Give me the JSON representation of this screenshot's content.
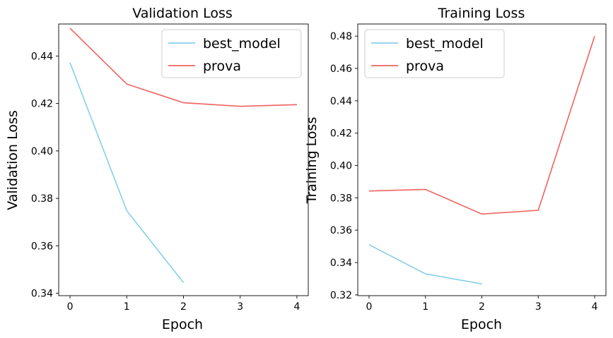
{
  "chart_data": [
    {
      "type": "line",
      "title": "Validation Loss",
      "xlabel": "Epoch",
      "ylabel": "Validation Loss",
      "xlim": [
        -0.2,
        4.2
      ],
      "ylim": [
        0.339,
        0.4535
      ],
      "xticks": [
        0,
        1,
        2,
        3,
        4
      ],
      "yticks": [
        0.34,
        0.36,
        0.38,
        0.4,
        0.42,
        0.44
      ],
      "legend": "top-right",
      "series": [
        {
          "name": "best_model",
          "color": "#87CEEB",
          "x": [
            0,
            1,
            2
          ],
          "y": [
            0.4372,
            0.3748,
            0.3445
          ]
        },
        {
          "name": "prova",
          "color": "#F0625F",
          "x": [
            0,
            1,
            2,
            3,
            4
          ],
          "y": [
            0.4517,
            0.4282,
            0.4203,
            0.4188,
            0.4195
          ]
        }
      ]
    },
    {
      "type": "line",
      "title": "Training Loss",
      "xlabel": "Epoch",
      "ylabel": "Training Loss",
      "xlim": [
        -0.2,
        4.2
      ],
      "ylim": [
        0.3195,
        0.4875
      ],
      "xticks": [
        0,
        1,
        2,
        3,
        4
      ],
      "yticks": [
        0.32,
        0.34,
        0.36,
        0.38,
        0.4,
        0.42,
        0.44,
        0.46,
        0.48
      ],
      "legend": "top-left",
      "series": [
        {
          "name": "best_model",
          "color": "#87CEEB",
          "x": [
            0,
            1,
            2
          ],
          "y": [
            0.351,
            0.333,
            0.3268
          ]
        },
        {
          "name": "prova",
          "color": "#F0625F",
          "x": [
            0,
            1,
            2,
            3,
            4
          ],
          "y": [
            0.3842,
            0.3852,
            0.37,
            0.3723,
            0.48
          ]
        }
      ]
    }
  ]
}
